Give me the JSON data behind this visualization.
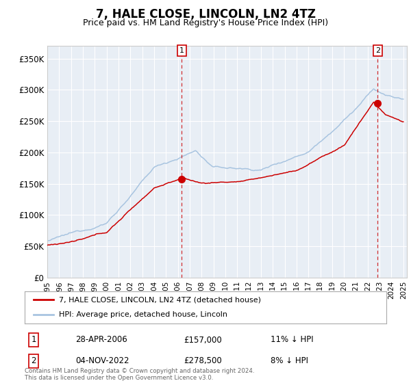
{
  "title": "7, HALE CLOSE, LINCOLN, LN2 4TZ",
  "subtitle": "Price paid vs. HM Land Registry's House Price Index (HPI)",
  "ylim": [
    0,
    370000
  ],
  "yticks": [
    0,
    50000,
    100000,
    150000,
    200000,
    250000,
    300000,
    350000
  ],
  "ytick_labels": [
    "£0",
    "£50K",
    "£100K",
    "£150K",
    "£200K",
    "£250K",
    "£300K",
    "£350K"
  ],
  "sale1_date_label": "28-APR-2006",
  "sale1_price": 157000,
  "sale1_price_label": "£157,000",
  "sale1_hpi_label": "11% ↓ HPI",
  "sale1_x": 2006.33,
  "sale2_date_label": "04-NOV-2022",
  "sale2_price": 278500,
  "sale2_price_label": "£278,500",
  "sale2_hpi_label": "8% ↓ HPI",
  "sale2_x": 2022.84,
  "legend_line1": "7, HALE CLOSE, LINCOLN, LN2 4TZ (detached house)",
  "legend_line2": "HPI: Average price, detached house, Lincoln",
  "footer": "Contains HM Land Registry data © Crown copyright and database right 2024.\nThis data is licensed under the Open Government Licence v3.0.",
  "hpi_color": "#a8c4e0",
  "sale_color": "#cc0000",
  "bg_color": "#f5f5f5",
  "plot_bg": "#e8eef5"
}
